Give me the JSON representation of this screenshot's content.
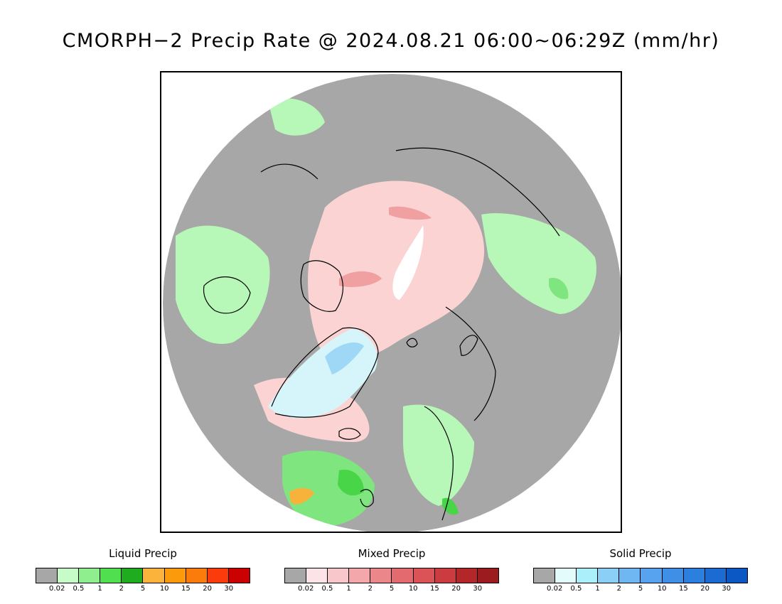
{
  "title": "CMORPH−2 Precip Rate @ 2024.08.21 06:00~06:29Z (mm/hr)",
  "map": {
    "colors": {
      "background": "#a7a7a7",
      "outside": "#ffffff",
      "light_green": "#b7f7b7",
      "green": "#7fe57f",
      "bright_green": "#48d648",
      "dark_green": "#1fad1f",
      "orange": "#f7b23c",
      "mixed_light": "#fbd3d3",
      "mixed_mid": "#f0a0a0",
      "snow_light": "#d6f5fb",
      "snow_mid": "#9fd7f7",
      "coastline": "#000000"
    }
  },
  "legends": [
    {
      "title": "Liquid Precip",
      "colors": [
        "#a7a7a7",
        "#c7fbc7",
        "#8fef8f",
        "#4fdf4f",
        "#1fad1f",
        "#fbb33b",
        "#fb9b0b",
        "#fb7b0b",
        "#fb3b0b",
        "#cb0000"
      ],
      "ticks": [
        "0.02",
        "0.5",
        "1",
        "2",
        "5",
        "10",
        "15",
        "20",
        "30"
      ]
    },
    {
      "title": "Mixed Precip",
      "colors": [
        "#a7a7a7",
        "#fbe3e7",
        "#f7c7cb",
        "#f3a7ab",
        "#eb878b",
        "#e36b6f",
        "#db5357",
        "#cb3b3f",
        "#b3272b",
        "#9b1b1f"
      ],
      "ticks": [
        "0.02",
        "0.5",
        "1",
        "2",
        "5",
        "10",
        "15",
        "20",
        "30"
      ]
    },
    {
      "title": "Solid Precip",
      "colors": [
        "#a7a7a7",
        "#e3fbfb",
        "#abeffb",
        "#8bcff7",
        "#6fb7f3",
        "#57a3ef",
        "#3f8fe7",
        "#2b7fdf",
        "#1b6bd3",
        "#0b57c3"
      ],
      "ticks": [
        "0.02",
        "0.5",
        "1",
        "2",
        "5",
        "10",
        "15",
        "20",
        "30"
      ]
    }
  ]
}
